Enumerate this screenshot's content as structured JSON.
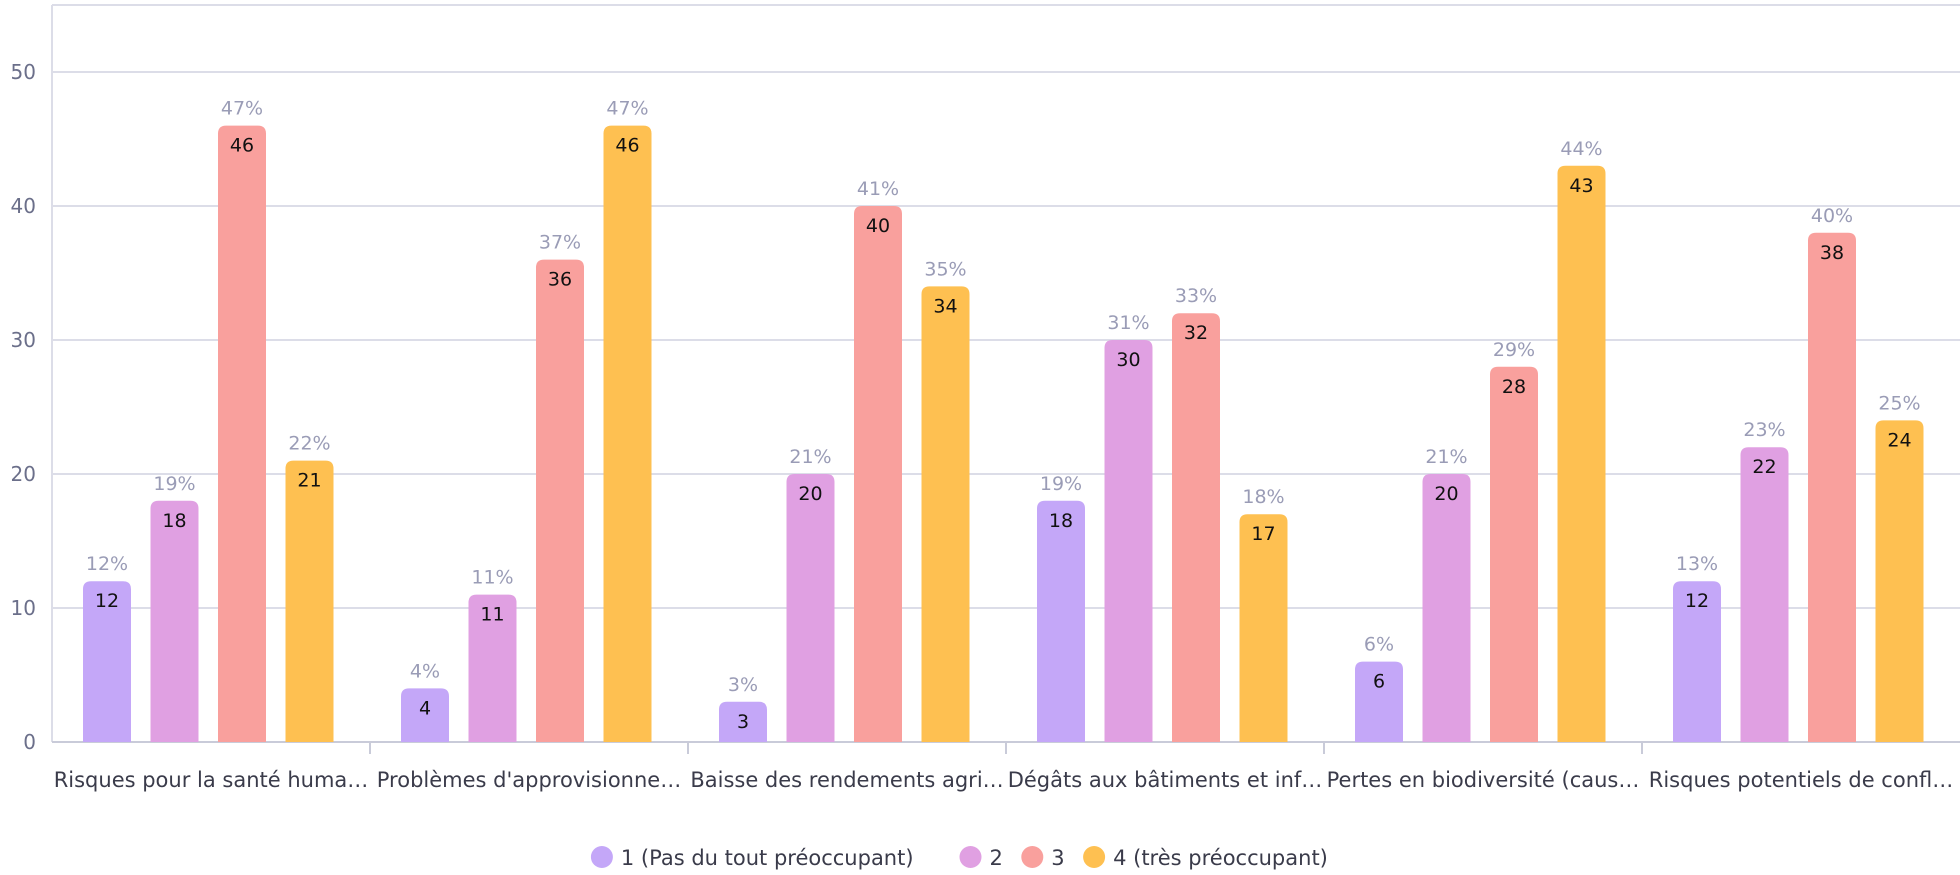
{
  "chart_data": {
    "type": "bar",
    "categories": [
      "Risques pour la santé huma…",
      "Problèmes d'approvisionne…",
      "Baisse des rendements agri…",
      "Dégâts aux bâtiments et inf…",
      "Pertes en biodiversité (caus…",
      "Risques potentiels de confl…"
    ],
    "series": [
      {
        "name": "1 (Pas du tout préoccupant)",
        "color": "#c4a7f8",
        "values": [
          12,
          4,
          3,
          18,
          6,
          12
        ],
        "percent_labels": [
          "12%",
          "4%",
          "3%",
          "19%",
          "6%",
          "13%"
        ]
      },
      {
        "name": "2",
        "color": "#e0a0e2",
        "values": [
          18,
          11,
          20,
          30,
          20,
          22
        ],
        "percent_labels": [
          "19%",
          "11%",
          "21%",
          "31%",
          "21%",
          "23%"
        ]
      },
      {
        "name": "3",
        "color": "#f9a09d",
        "values": [
          46,
          36,
          40,
          32,
          28,
          38
        ],
        "percent_labels": [
          "47%",
          "37%",
          "41%",
          "33%",
          "29%",
          "40%"
        ]
      },
      {
        "name": "4 (très préoccupant)",
        "color": "#fec051",
        "values": [
          21,
          46,
          34,
          17,
          43,
          24
        ],
        "percent_labels": [
          "22%",
          "47%",
          "35%",
          "18%",
          "44%",
          "25%"
        ]
      }
    ],
    "y_ticks": [
      0,
      10,
      20,
      30,
      40,
      50
    ],
    "ylim": [
      0,
      55
    ],
    "grid": true,
    "legend_position": "bottom-center",
    "title": "",
    "xlabel": "",
    "ylabel": ""
  }
}
